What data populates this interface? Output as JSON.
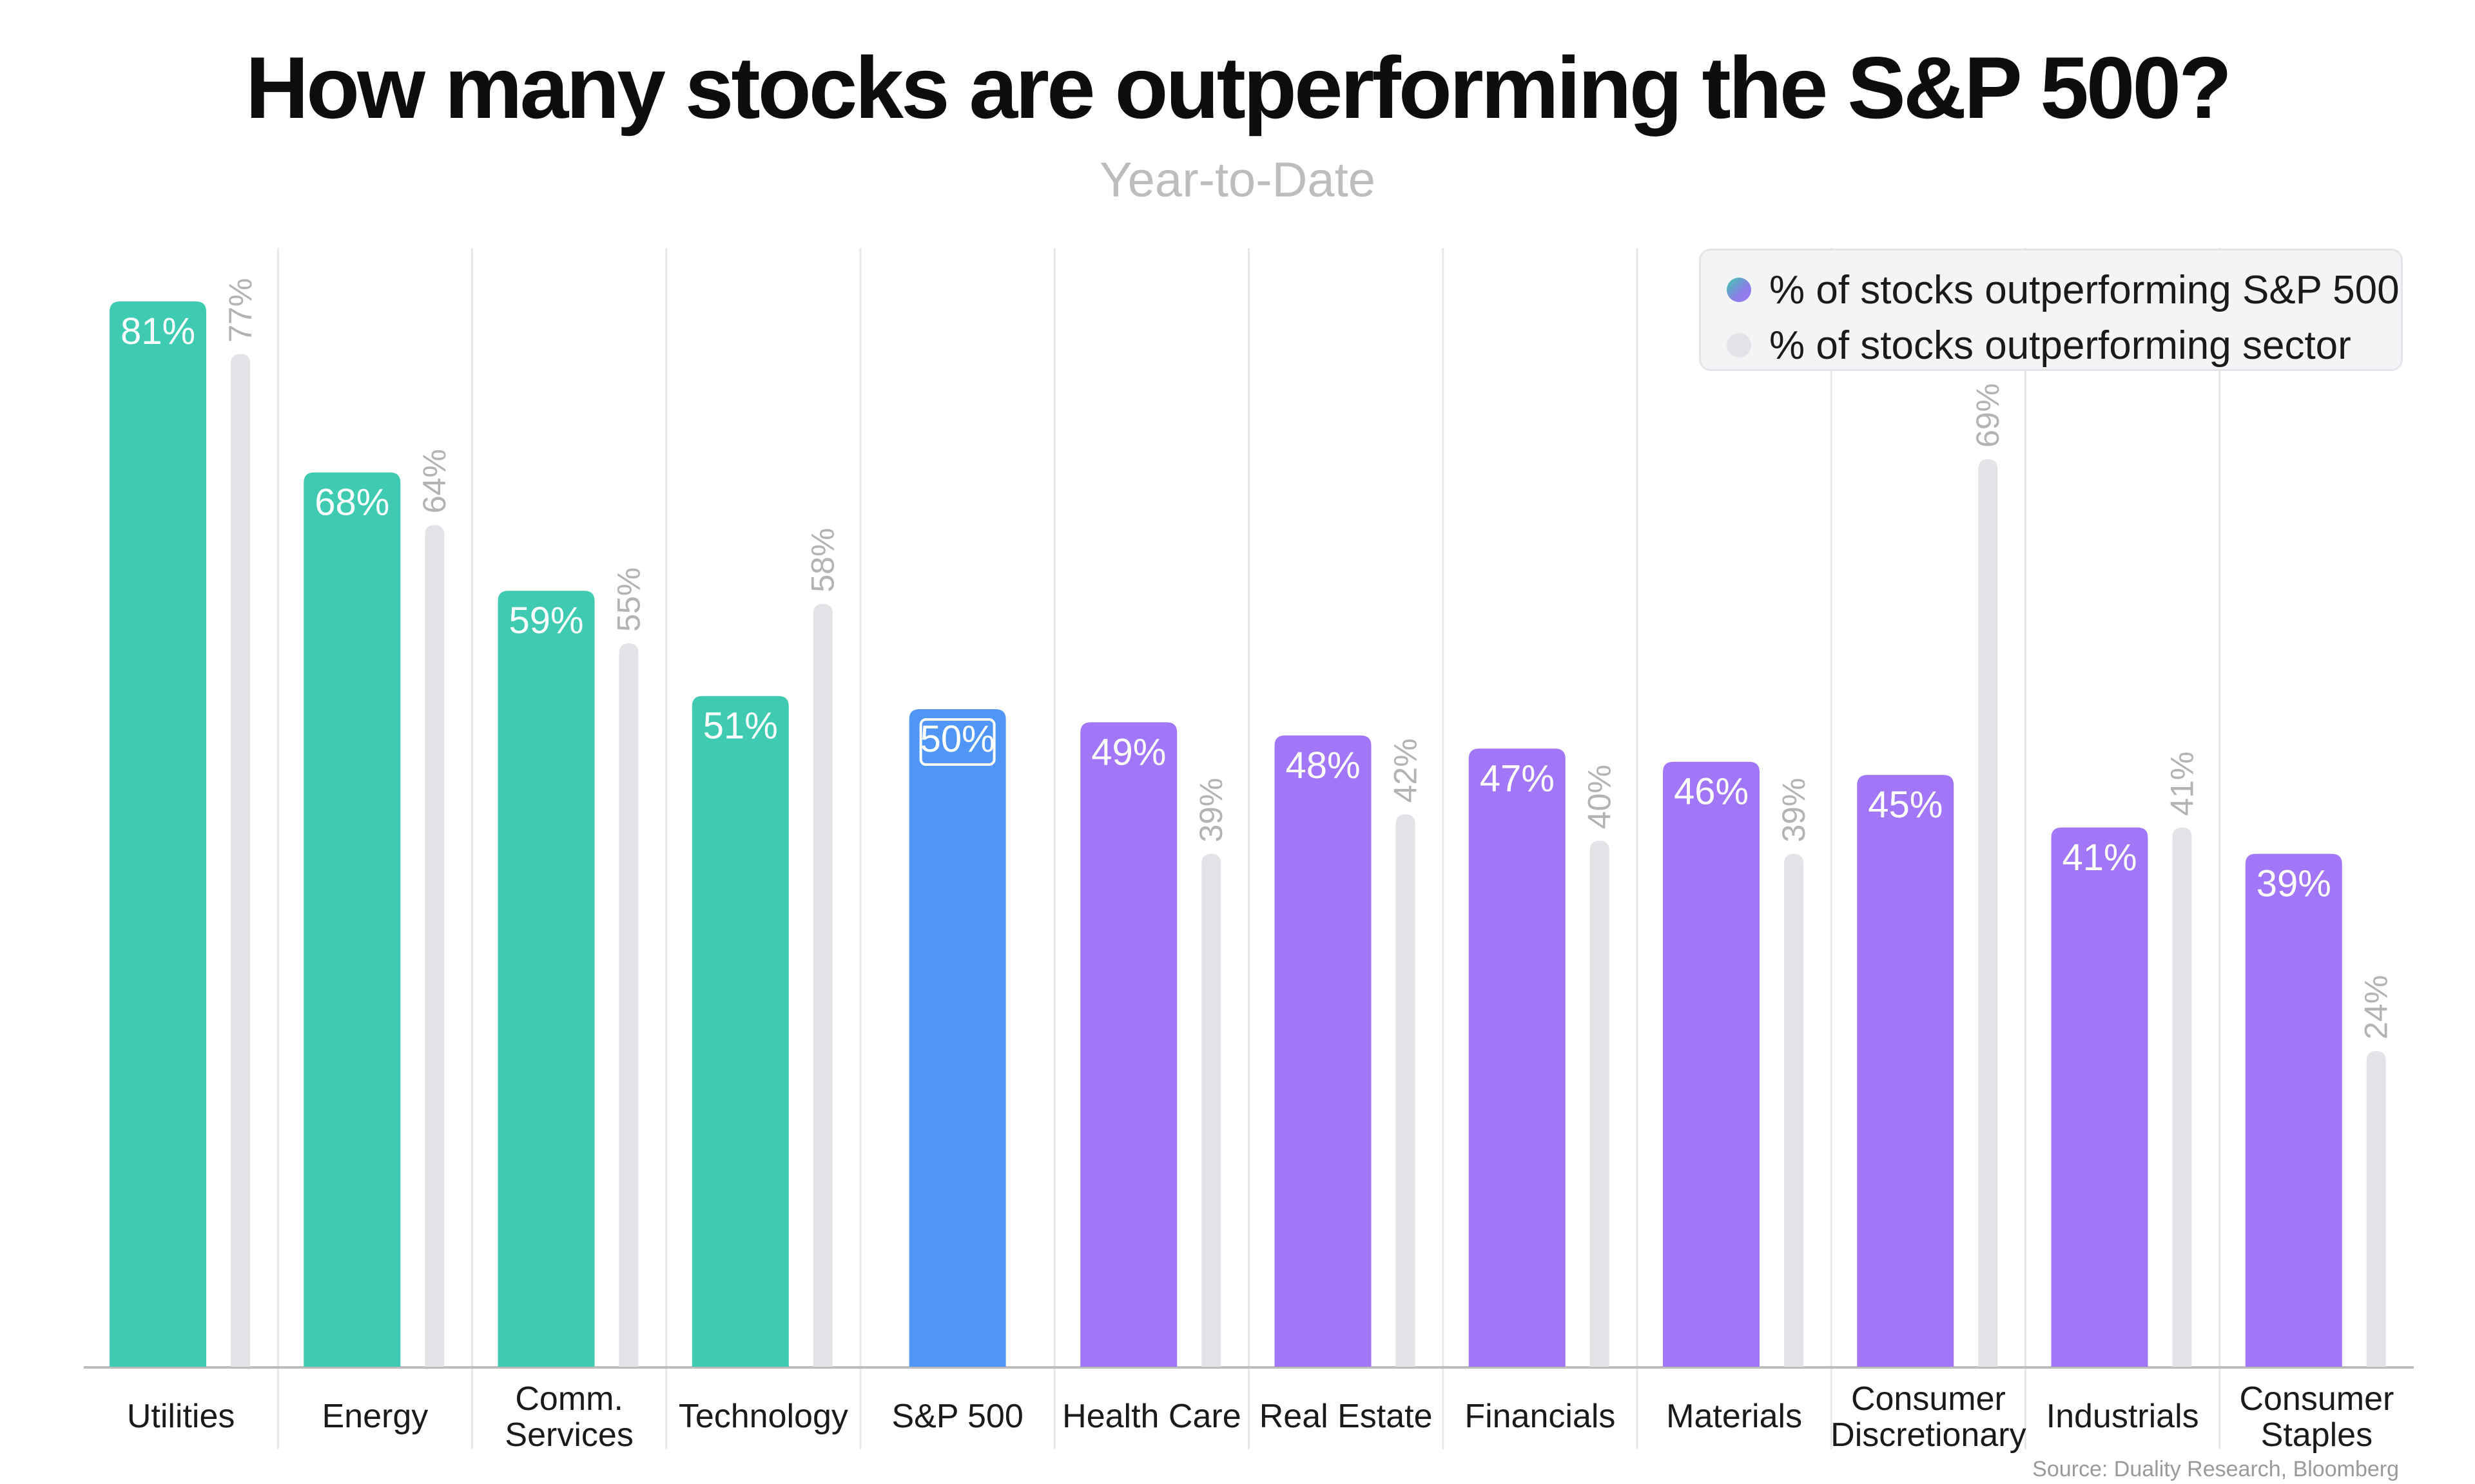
{
  "title": "How many stocks are outperforming the S&P 500?",
  "subtitle": "Year-to-Date",
  "source": "Source: Duality Research, Bloomberg",
  "legend": [
    {
      "label": "% of stocks outperforming S&P 500",
      "color": "#8a7fe6"
    },
    {
      "label": "% of stocks outperforming sector",
      "color": "#e2e3e6"
    }
  ],
  "colors": {
    "above_index": "#3ecbb1",
    "index": "#5096f7",
    "below_index": "#a277f7",
    "sector": "#e2e3e6",
    "grid": "#e8e8e8",
    "axis": "#bdbdbd"
  },
  "chart_data": {
    "type": "bar",
    "title": "How many stocks are outperforming the S&P 500?",
    "subtitle": "Year-to-Date",
    "categories": [
      [
        "Utilities"
      ],
      [
        "Energy"
      ],
      [
        "Comm.",
        "Services"
      ],
      [
        "Technology"
      ],
      [
        "S&P 500"
      ],
      [
        "Health Care"
      ],
      [
        "Real Estate"
      ],
      [
        "Financials"
      ],
      [
        "Materials"
      ],
      [
        "Consumer",
        "Discretionary"
      ],
      [
        "Industrials"
      ],
      [
        "Consumer",
        "Staples"
      ]
    ],
    "series": [
      {
        "name": "% of stocks outperforming S&P 500",
        "values": [
          81,
          68,
          59,
          51,
          50,
          49,
          48,
          47,
          46,
          45,
          41,
          39
        ],
        "labels": [
          "81%",
          "68%",
          "59%",
          "51%",
          "50%",
          "49%",
          "48%",
          "47%",
          "46%",
          "45%",
          "41%",
          "39%"
        ]
      },
      {
        "name": "% of stocks outperforming sector",
        "values": [
          77,
          64,
          55,
          58,
          null,
          39,
          42,
          40,
          39,
          69,
          41,
          24
        ],
        "labels": [
          "77%",
          "64%",
          "55%",
          "58%",
          "",
          "39%",
          "42%",
          "40%",
          "39%",
          "69%",
          "41%",
          "24%"
        ]
      }
    ],
    "ylim": [
      0,
      81
    ],
    "grid": true,
    "legend_position": "top-right"
  }
}
